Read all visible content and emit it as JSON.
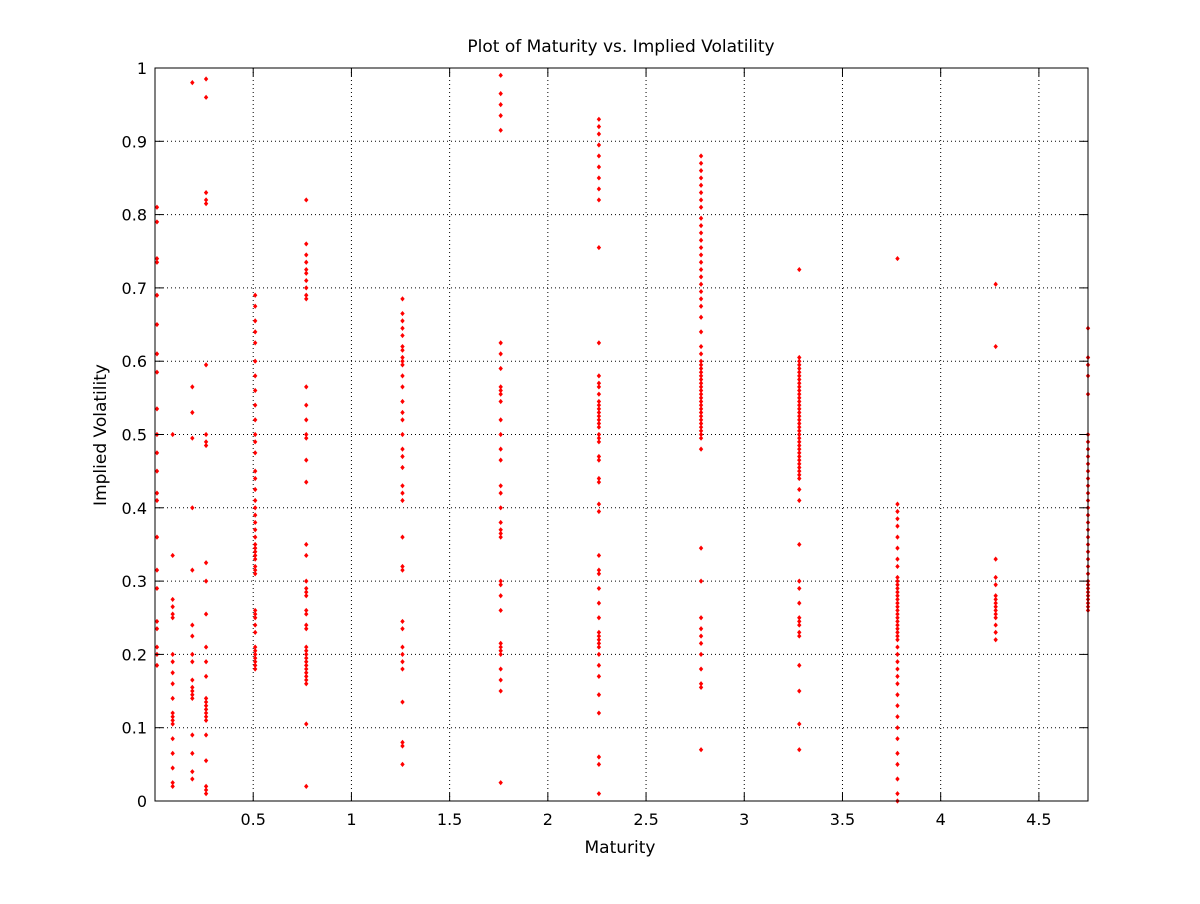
{
  "chart_data": {
    "type": "scatter",
    "title": "Plot of Maturity vs. Implied Volatility",
    "xlabel": "Maturity",
    "ylabel": "Implied Volatility",
    "xlim": [
      0,
      4.75
    ],
    "ylim": [
      0,
      1
    ],
    "xticks": [
      0.5,
      1,
      1.5,
      2,
      2.5,
      3,
      3.5,
      4,
      4.5
    ],
    "yticks": [
      0,
      0.1,
      0.2,
      0.3,
      0.4,
      0.5,
      0.6,
      0.7,
      0.8,
      0.9,
      1
    ],
    "xtick_labels": [
      "0.5",
      "1",
      "1.5",
      "2",
      "2.5",
      "3",
      "3.5",
      "4",
      "4.5"
    ],
    "ytick_labels": [
      "0",
      "0.1",
      "0.2",
      "0.3",
      "0.4",
      "0.5",
      "0.6",
      "0.7",
      "0.8",
      "0.9",
      "1"
    ],
    "grid": true,
    "grid_style": "dotted",
    "marker_color": "#ff0000",
    "series": [
      {
        "groups": [
          {
            "x": 0.01,
            "y": [
              0.81,
              0.79,
              0.74,
              0.735,
              0.69,
              0.65,
              0.61,
              0.585,
              0.535,
              0.5,
              0.475,
              0.45,
              0.42,
              0.41,
              0.36,
              0.315,
              0.29,
              0.245,
              0.235,
              0.21,
              0.2,
              0.185
            ]
          },
          {
            "x": 0.09,
            "y": [
              0.5,
              0.335,
              0.275,
              0.265,
              0.255,
              0.25,
              0.2,
              0.19,
              0.175,
              0.16,
              0.14,
              0.12,
              0.115,
              0.11,
              0.105,
              0.085,
              0.065,
              0.045,
              0.025,
              0.02
            ]
          },
          {
            "x": 0.19,
            "y": [
              0.98,
              0.565,
              0.53,
              0.495,
              0.4,
              0.315,
              0.24,
              0.225,
              0.2,
              0.19,
              0.165,
              0.155,
              0.15,
              0.145,
              0.14,
              0.09,
              0.065,
              0.04,
              0.03
            ]
          },
          {
            "x": 0.26,
            "y": [
              0.985,
              0.96,
              0.83,
              0.82,
              0.815,
              0.595,
              0.5,
              0.49,
              0.485,
              0.325,
              0.3,
              0.255,
              0.21,
              0.19,
              0.17,
              0.14,
              0.135,
              0.13,
              0.125,
              0.12,
              0.115,
              0.11,
              0.09,
              0.055,
              0.02,
              0.015,
              0.01
            ]
          },
          {
            "x": 0.51,
            "y": [
              0.69,
              0.675,
              0.655,
              0.64,
              0.625,
              0.6,
              0.58,
              0.56,
              0.54,
              0.52,
              0.5,
              0.49,
              0.475,
              0.45,
              0.44,
              0.425,
              0.41,
              0.4,
              0.39,
              0.38,
              0.37,
              0.36,
              0.35,
              0.345,
              0.34,
              0.335,
              0.33,
              0.32,
              0.315,
              0.31,
              0.26,
              0.255,
              0.25,
              0.24,
              0.23,
              0.21,
              0.205,
              0.2,
              0.195,
              0.19,
              0.185,
              0.18
            ]
          },
          {
            "x": 0.77,
            "y": [
              0.82,
              0.76,
              0.745,
              0.735,
              0.725,
              0.72,
              0.71,
              0.7,
              0.69,
              0.685,
              0.565,
              0.54,
              0.52,
              0.5,
              0.495,
              0.465,
              0.435,
              0.35,
              0.335,
              0.3,
              0.29,
              0.285,
              0.28,
              0.26,
              0.255,
              0.24,
              0.235,
              0.21,
              0.205,
              0.2,
              0.195,
              0.19,
              0.185,
              0.18,
              0.175,
              0.17,
              0.165,
              0.16,
              0.105,
              0.02
            ]
          },
          {
            "x": 1.26,
            "y": [
              0.685,
              0.665,
              0.655,
              0.645,
              0.635,
              0.62,
              0.615,
              0.605,
              0.6,
              0.595,
              0.58,
              0.565,
              0.545,
              0.53,
              0.52,
              0.5,
              0.48,
              0.47,
              0.455,
              0.43,
              0.42,
              0.41,
              0.36,
              0.32,
              0.315,
              0.245,
              0.235,
              0.21,
              0.2,
              0.19,
              0.18,
              0.135,
              0.08,
              0.075,
              0.05
            ]
          },
          {
            "x": 1.76,
            "y": [
              0.99,
              0.965,
              0.95,
              0.935,
              0.915,
              0.625,
              0.61,
              0.59,
              0.565,
              0.56,
              0.555,
              0.545,
              0.52,
              0.5,
              0.48,
              0.465,
              0.43,
              0.42,
              0.4,
              0.38,
              0.37,
              0.365,
              0.36,
              0.3,
              0.295,
              0.28,
              0.26,
              0.215,
              0.21,
              0.205,
              0.2,
              0.18,
              0.165,
              0.15,
              0.025
            ]
          },
          {
            "x": 2.26,
            "y": [
              0.93,
              0.92,
              0.91,
              0.895,
              0.88,
              0.865,
              0.85,
              0.835,
              0.82,
              0.755,
              0.625,
              0.58,
              0.57,
              0.565,
              0.555,
              0.545,
              0.54,
              0.535,
              0.53,
              0.525,
              0.52,
              0.515,
              0.51,
              0.5,
              0.495,
              0.49,
              0.47,
              0.465,
              0.44,
              0.435,
              0.405,
              0.395,
              0.335,
              0.315,
              0.31,
              0.29,
              0.27,
              0.25,
              0.23,
              0.225,
              0.22,
              0.215,
              0.21,
              0.2,
              0.185,
              0.17,
              0.145,
              0.12,
              0.06,
              0.05,
              0.01
            ]
          },
          {
            "x": 2.78,
            "y": [
              0.88,
              0.87,
              0.86,
              0.85,
              0.84,
              0.83,
              0.82,
              0.81,
              0.795,
              0.785,
              0.775,
              0.765,
              0.755,
              0.745,
              0.735,
              0.725,
              0.715,
              0.705,
              0.695,
              0.685,
              0.675,
              0.66,
              0.64,
              0.62,
              0.61,
              0.6,
              0.595,
              0.59,
              0.585,
              0.58,
              0.575,
              0.57,
              0.565,
              0.56,
              0.555,
              0.55,
              0.545,
              0.54,
              0.535,
              0.53,
              0.525,
              0.52,
              0.515,
              0.51,
              0.505,
              0.5,
              0.495,
              0.48,
              0.345,
              0.3,
              0.25,
              0.235,
              0.225,
              0.215,
              0.2,
              0.18,
              0.16,
              0.155,
              0.07
            ]
          },
          {
            "x": 3.28,
            "y": [
              0.725,
              0.605,
              0.6,
              0.595,
              0.59,
              0.585,
              0.58,
              0.575,
              0.57,
              0.565,
              0.56,
              0.555,
              0.55,
              0.545,
              0.54,
              0.535,
              0.53,
              0.525,
              0.52,
              0.515,
              0.51,
              0.505,
              0.5,
              0.495,
              0.49,
              0.485,
              0.48,
              0.475,
              0.47,
              0.465,
              0.46,
              0.455,
              0.45,
              0.445,
              0.44,
              0.425,
              0.41,
              0.35,
              0.3,
              0.29,
              0.27,
              0.25,
              0.245,
              0.24,
              0.23,
              0.225,
              0.185,
              0.15,
              0.105,
              0.07
            ]
          },
          {
            "x": 3.78,
            "y": [
              0.74,
              0.405,
              0.395,
              0.385,
              0.375,
              0.36,
              0.345,
              0.33,
              0.32,
              0.305,
              0.3,
              0.295,
              0.29,
              0.285,
              0.28,
              0.275,
              0.27,
              0.265,
              0.26,
              0.255,
              0.25,
              0.245,
              0.24,
              0.235,
              0.23,
              0.225,
              0.22,
              0.21,
              0.2,
              0.19,
              0.18,
              0.17,
              0.16,
              0.145,
              0.13,
              0.115,
              0.1,
              0.085,
              0.065,
              0.05,
              0.03,
              0.01,
              0.0
            ]
          },
          {
            "x": 4.28,
            "y": [
              0.705,
              0.62,
              0.33,
              0.305,
              0.295,
              0.28,
              0.275,
              0.27,
              0.265,
              0.26,
              0.255,
              0.25,
              0.24,
              0.23,
              0.22
            ]
          },
          {
            "x": 4.75,
            "y": [
              0.645,
              0.605,
              0.595,
              0.58,
              0.555,
              0.5,
              0.49,
              0.48,
              0.47,
              0.46,
              0.45,
              0.44,
              0.43,
              0.42,
              0.41,
              0.4,
              0.39,
              0.38,
              0.37,
              0.36,
              0.35,
              0.34,
              0.33,
              0.32,
              0.31,
              0.3,
              0.295,
              0.29,
              0.285,
              0.28,
              0.275,
              0.27,
              0.265,
              0.26
            ]
          }
        ]
      }
    ]
  }
}
